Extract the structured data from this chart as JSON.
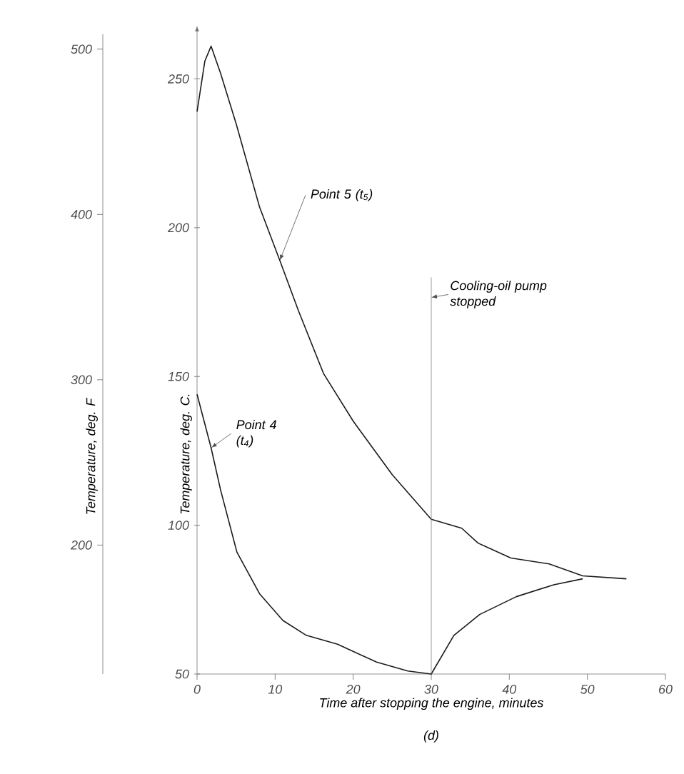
{
  "chart_data": {
    "type": "line",
    "xlabel": "Time after stopping the engine, minutes",
    "ylabel": "Temperature, deg. C.",
    "y2label": "Temperature, deg. F",
    "xlim": [
      0,
      60
    ],
    "xticks": [
      0,
      10,
      20,
      30,
      40,
      50,
      60
    ],
    "ylim": [
      50,
      265
    ],
    "yticks": [
      50,
      100,
      150,
      200,
      250
    ],
    "y2lim": [
      122,
      509
    ],
    "y2ticks": [
      200,
      300,
      400,
      500
    ],
    "marker": "none",
    "line_style": "solid",
    "series": [
      {
        "color": "#1a1a1a",
        "x": [
          0,
          1,
          1.8,
          3,
          5,
          8,
          10.6,
          13,
          16.2,
          20,
          25,
          30,
          33.9,
          36,
          40.2,
          45.1,
          49.4,
          55
        ],
        "values": [
          239,
          256,
          261,
          252,
          235,
          207,
          189,
          172,
          151,
          135,
          117,
          102,
          99,
          94,
          89,
          87,
          83,
          82
        ]
      },
      {
        "color": "#1a1a1a",
        "x": [
          0,
          1.8,
          3,
          5.1,
          8,
          11,
          14,
          18,
          23,
          27,
          30,
          32.9,
          36.2,
          40.9,
          45.7,
          49.4
        ],
        "values": [
          144,
          126,
          112,
          91,
          77,
          68,
          63,
          60,
          54,
          51,
          50,
          63,
          70,
          76,
          80,
          82
        ]
      }
    ],
    "ref_lines": [
      {
        "axis": "x",
        "value": 30,
        "label": "Cooling-oil pump stopped",
        "color": "#808080"
      }
    ],
    "annotations": [
      {
        "text": "Point 5 (t$_{5}$)",
        "x": 10.6,
        "y": 189
      },
      {
        "text": "Point 4 (t$_{4}$)",
        "x": 1.8,
        "y": 126
      },
      "(d)"
    ]
  }
}
